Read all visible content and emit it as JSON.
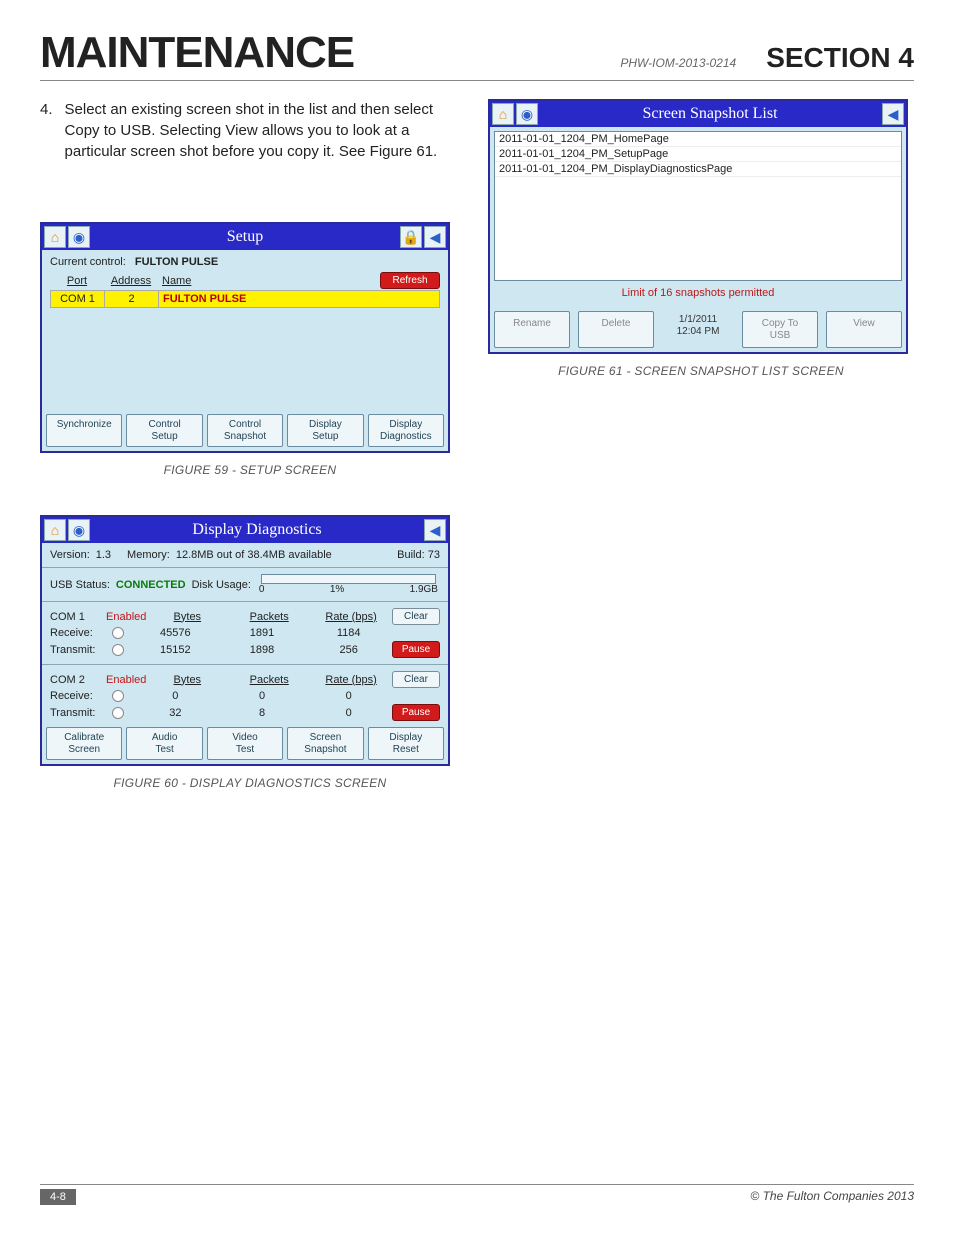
{
  "header": {
    "title": "MAINTENANCE",
    "doc_code": "PHW-IOM-2013-0214",
    "section": "SECTION 4"
  },
  "step": {
    "number": "4.",
    "text": "Select an existing screen shot in the list and then select Copy to USB.  Selecting View allows you to look at a particular screen shot before you copy it. See Figure 61."
  },
  "fig59": {
    "caption": "FIGURE 59 - SETUP SCREEN",
    "title": "Setup",
    "current_control_label": "Current control:",
    "current_control_value": "FULTON PULSE",
    "columns": {
      "port": "Port",
      "address": "Address",
      "name": "Name"
    },
    "refresh": "Refresh",
    "row": {
      "port": "COM 1",
      "address": "2",
      "name": "FULTON PULSE"
    },
    "buttons": [
      "Synchronize",
      "Control\nSetup",
      "Control\nSnapshot",
      "Display\nSetup",
      "Display\nDiagnostics"
    ]
  },
  "fig60": {
    "caption": "FIGURE 60 - DISPLAY DIAGNOSTICS SCREEN",
    "title": "Display Diagnostics",
    "version_label": "Version:",
    "version": "1.3",
    "memory_label": "Memory:",
    "memory": "12.8MB out of 38.4MB available",
    "build_label": "Build:",
    "build": "73",
    "usb_label": "USB Status:",
    "usb_status": "CONNECTED",
    "disk_label": "Disk Usage:",
    "disk_zero": "0",
    "disk_pct": "1%",
    "disk_total": "1.9GB",
    "col_bytes": "Bytes",
    "col_packets": "Packets",
    "col_rate": "Rate (bps)",
    "enabled": "Enabled",
    "receive": "Receive:",
    "transmit": "Transmit:",
    "clear": "Clear",
    "pause": "Pause",
    "com1": {
      "port": "COM 1",
      "rx": {
        "bytes": "45576",
        "packets": "1891",
        "rate": "1184"
      },
      "tx": {
        "bytes": "15152",
        "packets": "1898",
        "rate": "256"
      }
    },
    "com2": {
      "port": "COM 2",
      "rx": {
        "bytes": "0",
        "packets": "0",
        "rate": "0"
      },
      "tx": {
        "bytes": "32",
        "packets": "8",
        "rate": "0"
      }
    },
    "buttons": [
      "Calibrate\nScreen",
      "Audio\nTest",
      "Video\nTest",
      "Screen\nSnapshot",
      "Display\nReset"
    ]
  },
  "fig61": {
    "caption": "FIGURE 61 - SCREEN SNAPSHOT LIST SCREEN",
    "title": "Screen Snapshot List",
    "items": [
      "2011-01-01_1204_PM_HomePage",
      "2011-01-01_1204_PM_SetupPage",
      "2011-01-01_1204_PM_DisplayDiagnosticsPage"
    ],
    "warning": "Limit of 16 snapshots permitted",
    "buttons": {
      "rename": "Rename",
      "delete": "Delete",
      "datetime": "1/1/2011\n12:04 PM",
      "copy": "Copy To\nUSB",
      "view": "View"
    }
  },
  "footer": {
    "page": "4-8",
    "copyright": "© The Fulton Companies 2013"
  },
  "colors": {
    "titlebar": "#2929c8",
    "panel_bg": "#cfe7f0",
    "highlight_row": "#fff200",
    "danger": "#d11a1a",
    "link": "#245"
  }
}
